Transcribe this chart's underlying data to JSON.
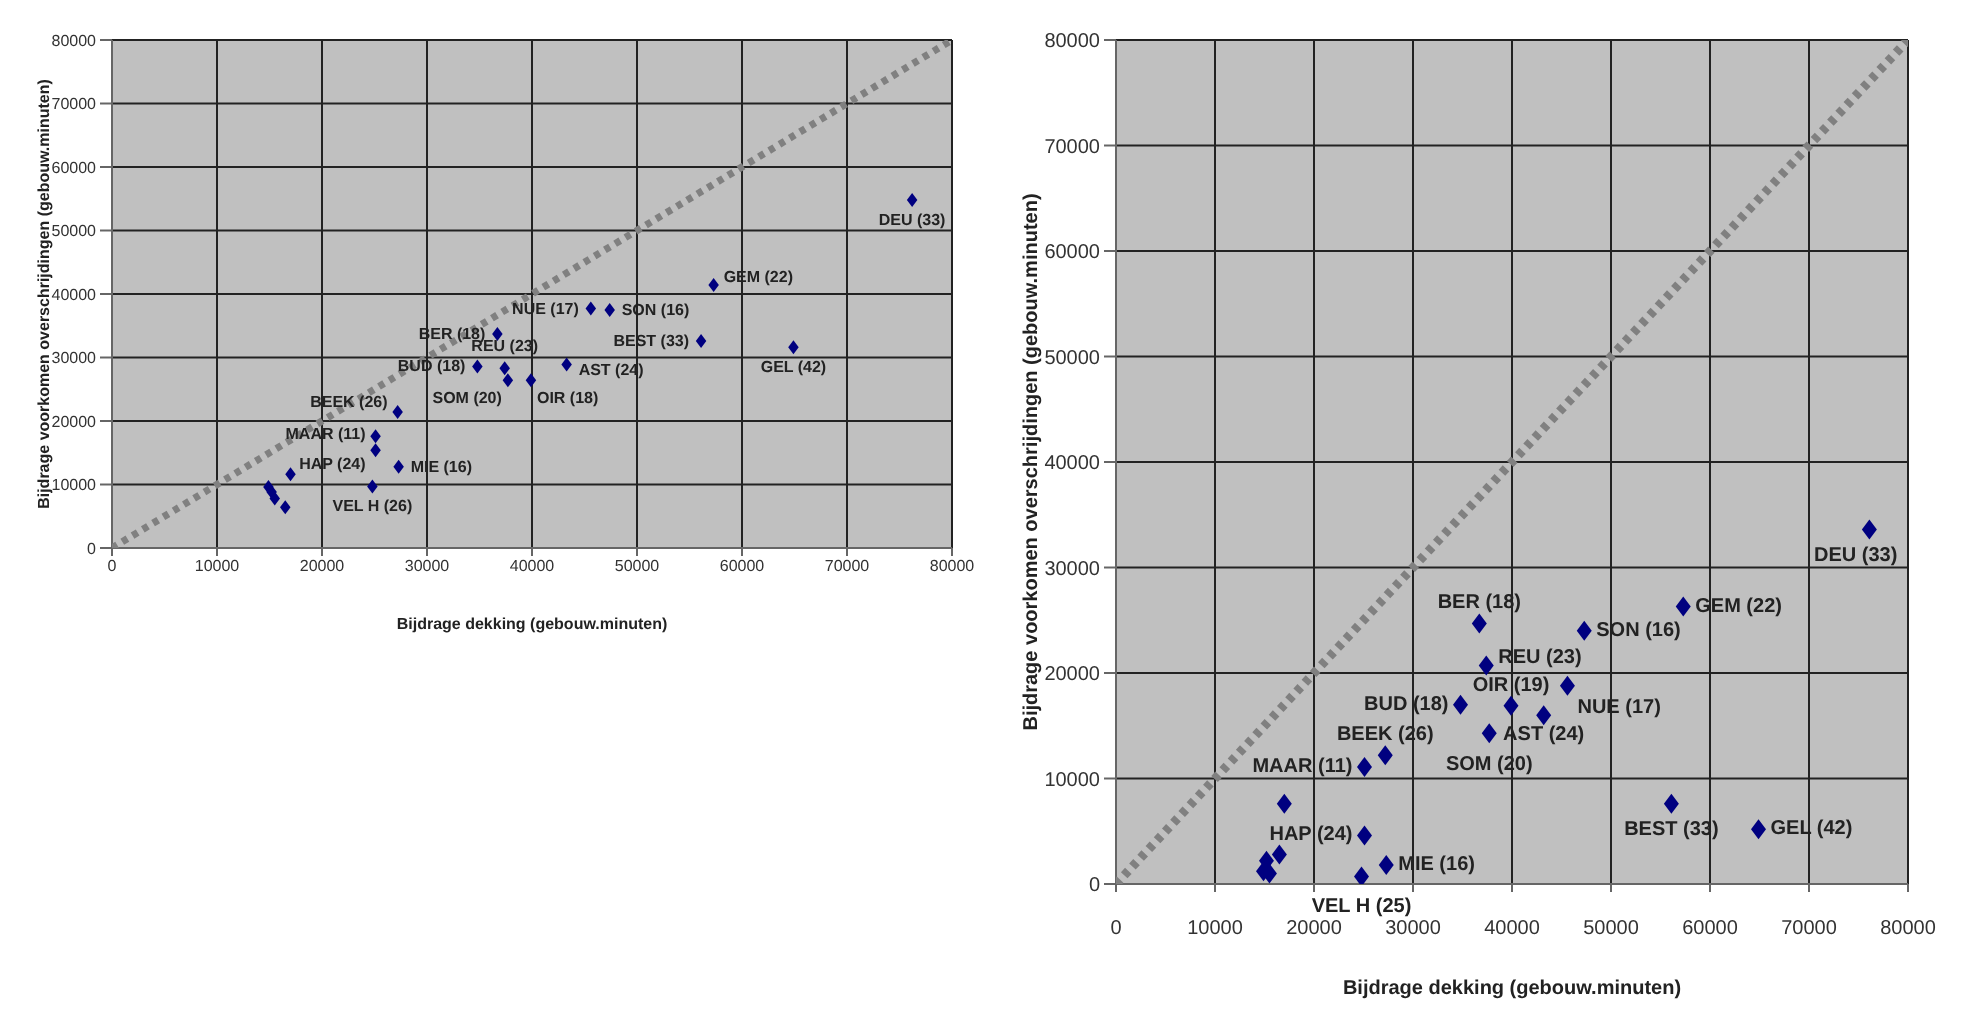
{
  "chart_data": [
    {
      "type": "scatter",
      "xlabel": "Bijdrage dekking (gebouw.minuten)",
      "ylabel": "Bijdrage voorkomen overschrijdingen (gebouw.minuten)",
      "xlim": [
        0,
        80000
      ],
      "ylim": [
        0,
        80000
      ],
      "xticks": [
        0,
        10000,
        20000,
        30000,
        40000,
        50000,
        60000,
        70000,
        80000
      ],
      "yticks": [
        0,
        10000,
        20000,
        30000,
        40000,
        50000,
        60000,
        70000,
        80000
      ],
      "grid": true,
      "legend": false,
      "marker": "diamond",
      "series": [
        {
          "type": "scatter",
          "color": "#000080",
          "x": [
            14900,
            15200,
            15500,
            16500,
            17000,
            24800,
            25100,
            25100,
            27300,
            27200,
            34800,
            36700,
            37400,
            37700,
            39900,
            43300,
            45600,
            47400,
            57300,
            56100,
            64900,
            76200
          ],
          "values": [
            9600,
            8800,
            7800,
            6400,
            11600,
            9700,
            15400,
            17600,
            12800,
            21400,
            28600,
            33700,
            28300,
            26400,
            26400,
            28900,
            37700,
            37500,
            41400,
            32600,
            31600,
            54800
          ]
        },
        {
          "type": "line",
          "color": "#808080",
          "x": [
            0,
            80000
          ],
          "values": [
            0,
            80000
          ],
          "line_style": "dotted",
          "marker": "none"
        }
      ],
      "annotations": [
        {
          "text": "DEU (33)",
          "x": 76200,
          "y": 54800
        },
        {
          "text": "GEM (22)",
          "x": 57300,
          "y": 41400
        },
        {
          "text": "SON (16)",
          "x": 47400,
          "y": 37500
        },
        {
          "text": "BER (18)",
          "x": 36700,
          "y": 33700
        },
        {
          "text": "REU (23)",
          "x": 37400,
          "y": 28300
        },
        {
          "text": "OIR (18)",
          "x": 39900,
          "y": 26400
        },
        {
          "text": "NUE (17)",
          "x": 45600,
          "y": 37700
        },
        {
          "text": "BUD (18)",
          "x": 34800,
          "y": 28600
        },
        {
          "text": "AST (24)",
          "x": 43300,
          "y": 28900
        },
        {
          "text": "SOM (20)",
          "x": 37700,
          "y": 26400
        },
        {
          "text": "MAAR (11)",
          "x": 25100,
          "y": 17600
        },
        {
          "text": "BEEK (26)",
          "x": 27200,
          "y": 21400
        },
        {
          "text": "HAP (24)",
          "x": 25100,
          "y": 15400
        },
        {
          "text": "VEL H (26)",
          "x": 24800,
          "y": 9700
        },
        {
          "text": "MIE (16)",
          "x": 27300,
          "y": 12800
        },
        {
          "text": "BEST (33)",
          "x": 56100,
          "y": 32600
        },
        {
          "text": "GEL (42)",
          "x": 64900,
          "y": 31600
        }
      ]
    },
    {
      "type": "scatter",
      "xlabel": "Bijdrage dekking (gebouw.minuten)",
      "ylabel": "Bijdrage voorkomen overschrijdingen (gebouw.minuten)",
      "xlim": [
        0,
        80000
      ],
      "ylim": [
        0,
        80000
      ],
      "xticks": [
        0,
        10000,
        20000,
        30000,
        40000,
        50000,
        60000,
        70000,
        80000
      ],
      "yticks": [
        0,
        10000,
        20000,
        30000,
        40000,
        50000,
        60000,
        70000,
        80000
      ],
      "grid": true,
      "legend": false,
      "marker": "diamond",
      "series": [
        {
          "type": "scatter",
          "color": "#000080",
          "x": [
            14900,
            15200,
            15500,
            16500,
            17000,
            24800,
            25100,
            25100,
            27300,
            27200,
            34800,
            36700,
            37400,
            37700,
            39900,
            43200,
            45600,
            47300,
            57300,
            56100,
            64900,
            76100
          ],
          "values": [
            1200,
            2200,
            1000,
            2800,
            7600,
            700,
            4600,
            11100,
            1800,
            12200,
            17000,
            24700,
            20700,
            14300,
            16900,
            16000,
            18800,
            24000,
            26300,
            7600,
            5200,
            33600
          ]
        },
        {
          "type": "line",
          "color": "#808080",
          "x": [
            0,
            80000
          ],
          "values": [
            0,
            80000
          ],
          "line_style": "dotted",
          "marker": "none"
        }
      ],
      "annotations": [
        {
          "text": "DEU (33)",
          "x": 76100,
          "y": 33600
        },
        {
          "text": "GEM (22)",
          "x": 57300,
          "y": 26300
        },
        {
          "text": "SON (16)",
          "x": 47300,
          "y": 24000
        },
        {
          "text": "BER (18)",
          "x": 36700,
          "y": 24700
        },
        {
          "text": "REU (23)",
          "x": 37400,
          "y": 20700
        },
        {
          "text": "OIR (19)",
          "x": 39900,
          "y": 16900
        },
        {
          "text": "NUE (17)",
          "x": 45600,
          "y": 18800
        },
        {
          "text": "BUD (18)",
          "x": 34800,
          "y": 17000
        },
        {
          "text": "AST (24)",
          "x": 43200,
          "y": 16000
        },
        {
          "text": "SOM (20)",
          "x": 37700,
          "y": 14300
        },
        {
          "text": "MAAR (11)",
          "x": 25100,
          "y": 11100
        },
        {
          "text": "BEEK (26)",
          "x": 27200,
          "y": 12200
        },
        {
          "text": "HAP (24)",
          "x": 25100,
          "y": 4600
        },
        {
          "text": "VEL H (25)",
          "x": 24800,
          "y": 700
        },
        {
          "text": "MIE (16)",
          "x": 27300,
          "y": 1800
        },
        {
          "text": "BEST (33)",
          "x": 56100,
          "y": 7600
        },
        {
          "text": "GEL (42)",
          "x": 64900,
          "y": 5200
        }
      ]
    }
  ]
}
